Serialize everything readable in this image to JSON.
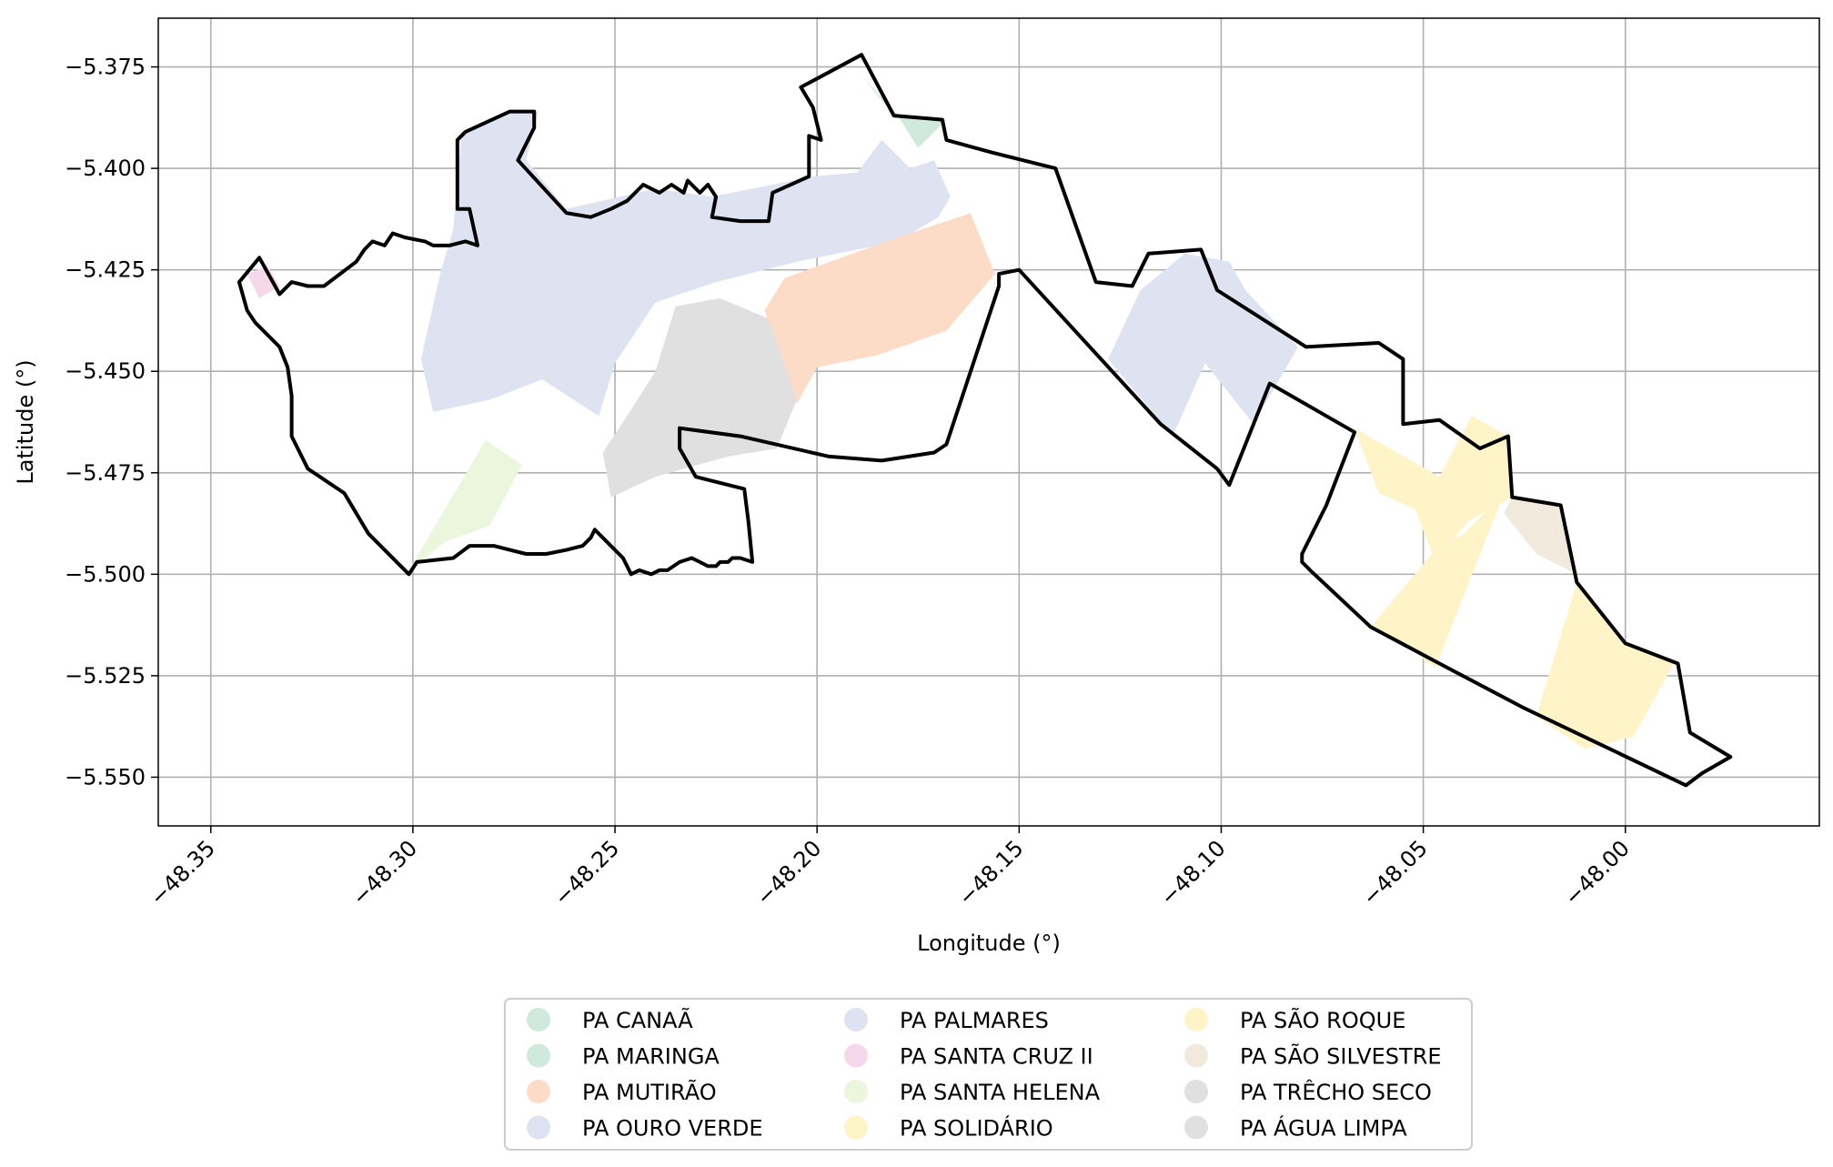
{
  "map": {
    "xlabel": "Longitude (°)",
    "ylabel": "Latitude (°)",
    "xlim": [
      -48.363,
      -47.952
    ],
    "ylim": [
      -5.562,
      -5.363
    ],
    "grid": true,
    "x_ticks": [
      {
        "value": -48.35,
        "label": "−48.35"
      },
      {
        "value": -48.3,
        "label": "−48.30"
      },
      {
        "value": -48.25,
        "label": "−48.25"
      },
      {
        "value": -48.2,
        "label": "−48.20"
      },
      {
        "value": -48.15,
        "label": "−48.15"
      },
      {
        "value": -48.1,
        "label": "−48.10"
      },
      {
        "value": -48.05,
        "label": "−48.05"
      },
      {
        "value": -48.0,
        "label": "−48.00"
      }
    ],
    "y_ticks": [
      {
        "value": -5.375,
        "label": "−5.375"
      },
      {
        "value": -5.4,
        "label": "−5.400"
      },
      {
        "value": -5.425,
        "label": "−5.425"
      },
      {
        "value": -5.45,
        "label": "−5.450"
      },
      {
        "value": -5.475,
        "label": "−5.475"
      },
      {
        "value": -5.5,
        "label": "−5.500"
      },
      {
        "value": -5.525,
        "label": "−5.525"
      },
      {
        "value": -5.55,
        "label": "−5.550"
      }
    ],
    "legend_position": "below the map, 3 columns",
    "legend": [
      {
        "label": "PA CANAÃ",
        "color": "#cfeadd"
      },
      {
        "label": "PA MARINGA",
        "color": "#cfeadd"
      },
      {
        "label": "PA MUTIRÃO",
        "color": "#fcdcc7"
      },
      {
        "label": "PA OURO VERDE",
        "color": "#dee2f1"
      },
      {
        "label": "PA PALMARES",
        "color": "#dee2f1"
      },
      {
        "label": "PA SANTA CRUZ II",
        "color": "#f5d8ea"
      },
      {
        "label": "PA SANTA HELENA",
        "color": "#ebf6dd"
      },
      {
        "label": "PA SOLIDÁRIO",
        "color": "#fef4c8"
      },
      {
        "label": "PA SÃO ROQUE",
        "color": "#fef4c8"
      },
      {
        "label": "PA SÃO SILVESTRE",
        "color": "#f2e9dd"
      },
      {
        "label": "PA TRÊCHO SECO",
        "color": "#e0e0e0"
      },
      {
        "label": "PA ÁGUA LIMPA",
        "color": "#e0e0e0"
      }
    ]
  },
  "chart_data": {
    "type": "map",
    "xlabel": "Longitude (°)",
    "ylabel": "Latitude (°)",
    "xlim": [
      -48.363,
      -47.952
    ],
    "ylim": [
      -5.562,
      -5.363
    ],
    "boundary": [
      [
        -48.343,
        -5.428
      ],
      [
        -48.338,
        -5.422
      ],
      [
        -48.333,
        -5.431
      ],
      [
        -48.33,
        -5.428
      ],
      [
        -48.326,
        -5.429
      ],
      [
        -48.322,
        -5.429
      ],
      [
        -48.318,
        -5.426
      ],
      [
        -48.314,
        -5.423
      ],
      [
        -48.312,
        -5.42
      ],
      [
        -48.31,
        -5.418
      ],
      [
        -48.307,
        -5.419
      ],
      [
        -48.305,
        -5.416
      ],
      [
        -48.302,
        -5.417
      ],
      [
        -48.297,
        -5.418
      ],
      [
        -48.295,
        -5.419
      ],
      [
        -48.291,
        -5.419
      ],
      [
        -48.287,
        -5.418
      ],
      [
        -48.284,
        -5.419
      ],
      [
        -48.286,
        -5.41
      ],
      [
        -48.289,
        -5.41
      ],
      [
        -48.289,
        -5.393
      ],
      [
        -48.287,
        -5.391
      ],
      [
        -48.276,
        -5.386
      ],
      [
        -48.27,
        -5.386
      ],
      [
        -48.27,
        -5.39
      ],
      [
        -48.274,
        -5.398
      ],
      [
        -48.262,
        -5.411
      ],
      [
        -48.256,
        -5.412
      ],
      [
        -48.251,
        -5.41
      ],
      [
        -48.247,
        -5.408
      ],
      [
        -48.243,
        -5.404
      ],
      [
        -48.239,
        -5.406
      ],
      [
        -48.236,
        -5.404
      ],
      [
        -48.233,
        -5.406
      ],
      [
        -48.232,
        -5.403
      ],
      [
        -48.229,
        -5.406
      ],
      [
        -48.227,
        -5.404
      ],
      [
        -48.225,
        -5.407
      ],
      [
        -48.226,
        -5.412
      ],
      [
        -48.219,
        -5.413
      ],
      [
        -48.212,
        -5.413
      ],
      [
        -48.211,
        -5.406
      ],
      [
        -48.202,
        -5.402
      ],
      [
        -48.202,
        -5.392
      ],
      [
        -48.199,
        -5.393
      ],
      [
        -48.201,
        -5.385
      ],
      [
        -48.204,
        -5.38
      ],
      [
        -48.189,
        -5.372
      ],
      [
        -48.181,
        -5.387
      ],
      [
        -48.169,
        -5.388
      ],
      [
        -48.168,
        -5.393
      ],
      [
        -48.157,
        -5.396
      ],
      [
        -48.141,
        -5.4
      ],
      [
        -48.131,
        -5.428
      ],
      [
        -48.122,
        -5.429
      ],
      [
        -48.118,
        -5.421
      ],
      [
        -48.105,
        -5.42
      ],
      [
        -48.101,
        -5.43
      ],
      [
        -48.079,
        -5.444
      ],
      [
        -48.061,
        -5.443
      ],
      [
        -48.055,
        -5.447
      ],
      [
        -48.055,
        -5.463
      ],
      [
        -48.046,
        -5.462
      ],
      [
        -48.036,
        -5.469
      ],
      [
        -48.029,
        -5.466
      ],
      [
        -48.028,
        -5.481
      ],
      [
        -48.016,
        -5.483
      ],
      [
        -48.012,
        -5.502
      ],
      [
        -48.0,
        -5.517
      ],
      [
        -47.987,
        -5.522
      ],
      [
        -47.984,
        -5.539
      ],
      [
        -47.974,
        -5.545
      ],
      [
        -47.981,
        -5.549
      ],
      [
        -47.985,
        -5.552
      ],
      [
        -48.006,
        -5.542
      ],
      [
        -48.025,
        -5.533
      ],
      [
        -48.046,
        -5.522
      ],
      [
        -48.063,
        -5.513
      ],
      [
        -48.078,
        -5.499
      ],
      [
        -48.08,
        -5.497
      ],
      [
        -48.08,
        -5.495
      ],
      [
        -48.074,
        -5.483
      ],
      [
        -48.067,
        -5.465
      ],
      [
        -48.088,
        -5.453
      ],
      [
        -48.098,
        -5.478
      ],
      [
        -48.101,
        -5.474
      ],
      [
        -48.115,
        -5.463
      ],
      [
        -48.15,
        -5.425
      ],
      [
        -48.155,
        -5.426
      ],
      [
        -48.155,
        -5.429
      ],
      [
        -48.168,
        -5.468
      ],
      [
        -48.171,
        -5.47
      ],
      [
        -48.184,
        -5.472
      ],
      [
        -48.197,
        -5.471
      ],
      [
        -48.219,
        -5.466
      ],
      [
        -48.234,
        -5.464
      ],
      [
        -48.234,
        -5.469
      ],
      [
        -48.23,
        -5.476
      ],
      [
        -48.218,
        -5.479
      ],
      [
        -48.217,
        -5.487
      ],
      [
        -48.216,
        -5.497
      ],
      [
        -48.219,
        -5.496
      ],
      [
        -48.221,
        -5.496
      ],
      [
        -48.222,
        -5.497
      ],
      [
        -48.224,
        -5.497
      ],
      [
        -48.225,
        -5.498
      ],
      [
        -48.227,
        -5.498
      ],
      [
        -48.229,
        -5.497
      ],
      [
        -48.231,
        -5.496
      ],
      [
        -48.234,
        -5.497
      ],
      [
        -48.237,
        -5.499
      ],
      [
        -48.239,
        -5.499
      ],
      [
        -48.241,
        -5.5
      ],
      [
        -48.244,
        -5.499
      ],
      [
        -48.246,
        -5.5
      ],
      [
        -48.248,
        -5.496
      ],
      [
        -48.253,
        -5.491
      ],
      [
        -48.255,
        -5.489
      ],
      [
        -48.256,
        -5.491
      ],
      [
        -48.258,
        -5.493
      ],
      [
        -48.262,
        -5.494
      ],
      [
        -48.267,
        -5.495
      ],
      [
        -48.272,
        -5.495
      ],
      [
        -48.276,
        -5.494
      ],
      [
        -48.28,
        -5.493
      ],
      [
        -48.286,
        -5.493
      ],
      [
        -48.29,
        -5.496
      ],
      [
        -48.299,
        -5.497
      ],
      [
        -48.301,
        -5.5
      ],
      [
        -48.304,
        -5.497
      ],
      [
        -48.311,
        -5.49
      ],
      [
        -48.317,
        -5.48
      ],
      [
        -48.326,
        -5.474
      ],
      [
        -48.33,
        -5.466
      ],
      [
        -48.33,
        -5.456
      ],
      [
        -48.331,
        -5.449
      ],
      [
        -48.333,
        -5.444
      ],
      [
        -48.339,
        -5.438
      ],
      [
        -48.341,
        -5.435
      ],
      [
        -48.343,
        -5.428
      ]
    ],
    "areas": [
      {
        "name": "PA PALMARES",
        "polygon": [
          [
            -48.288,
            -5.392
          ],
          [
            -48.276,
            -5.386
          ],
          [
            -48.269,
            -5.386
          ],
          [
            -48.272,
            -5.398
          ],
          [
            -48.262,
            -5.41
          ],
          [
            -48.24,
            -5.405
          ],
          [
            -48.226,
            -5.407
          ],
          [
            -48.211,
            -5.404
          ],
          [
            -48.201,
            -5.402
          ],
          [
            -48.19,
            -5.401
          ],
          [
            -48.184,
            -5.393
          ],
          [
            -48.177,
            -5.4
          ],
          [
            -48.171,
            -5.398
          ],
          [
            -48.167,
            -5.407
          ],
          [
            -48.17,
            -5.412
          ],
          [
            -48.18,
            -5.418
          ],
          [
            -48.205,
            -5.423
          ],
          [
            -48.225,
            -5.428
          ],
          [
            -48.24,
            -5.433
          ],
          [
            -48.25,
            -5.448
          ],
          [
            -48.254,
            -5.461
          ],
          [
            -48.268,
            -5.452
          ],
          [
            -48.281,
            -5.457
          ],
          [
            -48.295,
            -5.46
          ],
          [
            -48.298,
            -5.447
          ],
          [
            -48.293,
            -5.425
          ],
          [
            -48.29,
            -5.415
          ]
        ]
      },
      {
        "name": "PA OURO VERDE",
        "polygon": [
          [
            -48.109,
            -5.421
          ],
          [
            -48.098,
            -5.423
          ],
          [
            -48.094,
            -5.43
          ],
          [
            -48.081,
            -5.444
          ],
          [
            -48.092,
            -5.463
          ],
          [
            -48.104,
            -5.448
          ],
          [
            -48.112,
            -5.466
          ],
          [
            -48.128,
            -5.447
          ],
          [
            -48.12,
            -5.43
          ]
        ]
      },
      {
        "name": "PA MUTIRÃO",
        "polygon": [
          [
            -48.208,
            -5.427
          ],
          [
            -48.18,
            -5.417
          ],
          [
            -48.162,
            -5.411
          ],
          [
            -48.156,
            -5.426
          ],
          [
            -48.168,
            -5.44
          ],
          [
            -48.185,
            -5.446
          ],
          [
            -48.2,
            -5.449
          ],
          [
            -48.205,
            -5.458
          ],
          [
            -48.213,
            -5.435
          ]
        ]
      },
      {
        "name": "PA TRÊCHO SECO",
        "polygon": [
          [
            -48.235,
            -5.434
          ],
          [
            -48.224,
            -5.432
          ],
          [
            -48.212,
            -5.437
          ],
          [
            -48.205,
            -5.457
          ],
          [
            -48.21,
            -5.469
          ],
          [
            -48.222,
            -5.471
          ],
          [
            -48.233,
            -5.474
          ],
          [
            -48.24,
            -5.476
          ],
          [
            -48.251,
            -5.481
          ],
          [
            -48.253,
            -5.47
          ],
          [
            -48.247,
            -5.461
          ],
          [
            -48.24,
            -5.45
          ]
        ]
      },
      {
        "name": "PA MARINGA",
        "polygon": [
          [
            -48.189,
            -5.377
          ],
          [
            -48.18,
            -5.387
          ],
          [
            -48.175,
            -5.395
          ],
          [
            -48.168,
            -5.388
          ],
          [
            -48.181,
            -5.387
          ]
        ]
      },
      {
        "name": "PA SANTA CRUZ II",
        "polygon": [
          [
            -48.341,
            -5.426
          ],
          [
            -48.336,
            -5.424
          ],
          [
            -48.333,
            -5.429
          ],
          [
            -48.338,
            -5.432
          ]
        ]
      },
      {
        "name": "PA SANTA HELENA",
        "polygon": [
          [
            -48.301,
            -5.499
          ],
          [
            -48.282,
            -5.467
          ],
          [
            -48.273,
            -5.473
          ],
          [
            -48.281,
            -5.488
          ],
          [
            -48.292,
            -5.492
          ]
        ]
      },
      {
        "name": "PA SOLIDÁRIO",
        "polygon": [
          [
            -48.067,
            -5.464
          ],
          [
            -48.046,
            -5.476
          ],
          [
            -48.038,
            -5.461
          ],
          [
            -48.029,
            -5.466
          ],
          [
            -48.028,
            -5.481
          ],
          [
            -48.039,
            -5.487
          ],
          [
            -48.047,
            -5.497
          ],
          [
            -48.052,
            -5.484
          ],
          [
            -48.061,
            -5.48
          ]
        ]
      },
      {
        "name": "PA SÃO ROQUE",
        "polygon": [
          [
            -48.047,
            -5.494
          ],
          [
            -48.04,
            -5.49
          ],
          [
            -48.03,
            -5.48
          ],
          [
            -48.047,
            -5.523
          ],
          [
            -48.058,
            -5.515
          ],
          [
            -48.063,
            -5.513
          ]
        ]
      },
      {
        "name": "PA SOLIDÁRIO",
        "polygon": [
          [
            -48.012,
            -5.502
          ],
          [
            -48.0,
            -5.517
          ],
          [
            -47.988,
            -5.522
          ],
          [
            -47.998,
            -5.54
          ],
          [
            -48.01,
            -5.543
          ],
          [
            -48.022,
            -5.535
          ]
        ]
      },
      {
        "name": "PA SÃO SILVESTRE",
        "polygon": [
          [
            -48.016,
            -5.483
          ],
          [
            -48.028,
            -5.481
          ],
          [
            -48.03,
            -5.485
          ],
          [
            -48.022,
            -5.495
          ],
          [
            -48.012,
            -5.5
          ]
        ]
      }
    ]
  }
}
